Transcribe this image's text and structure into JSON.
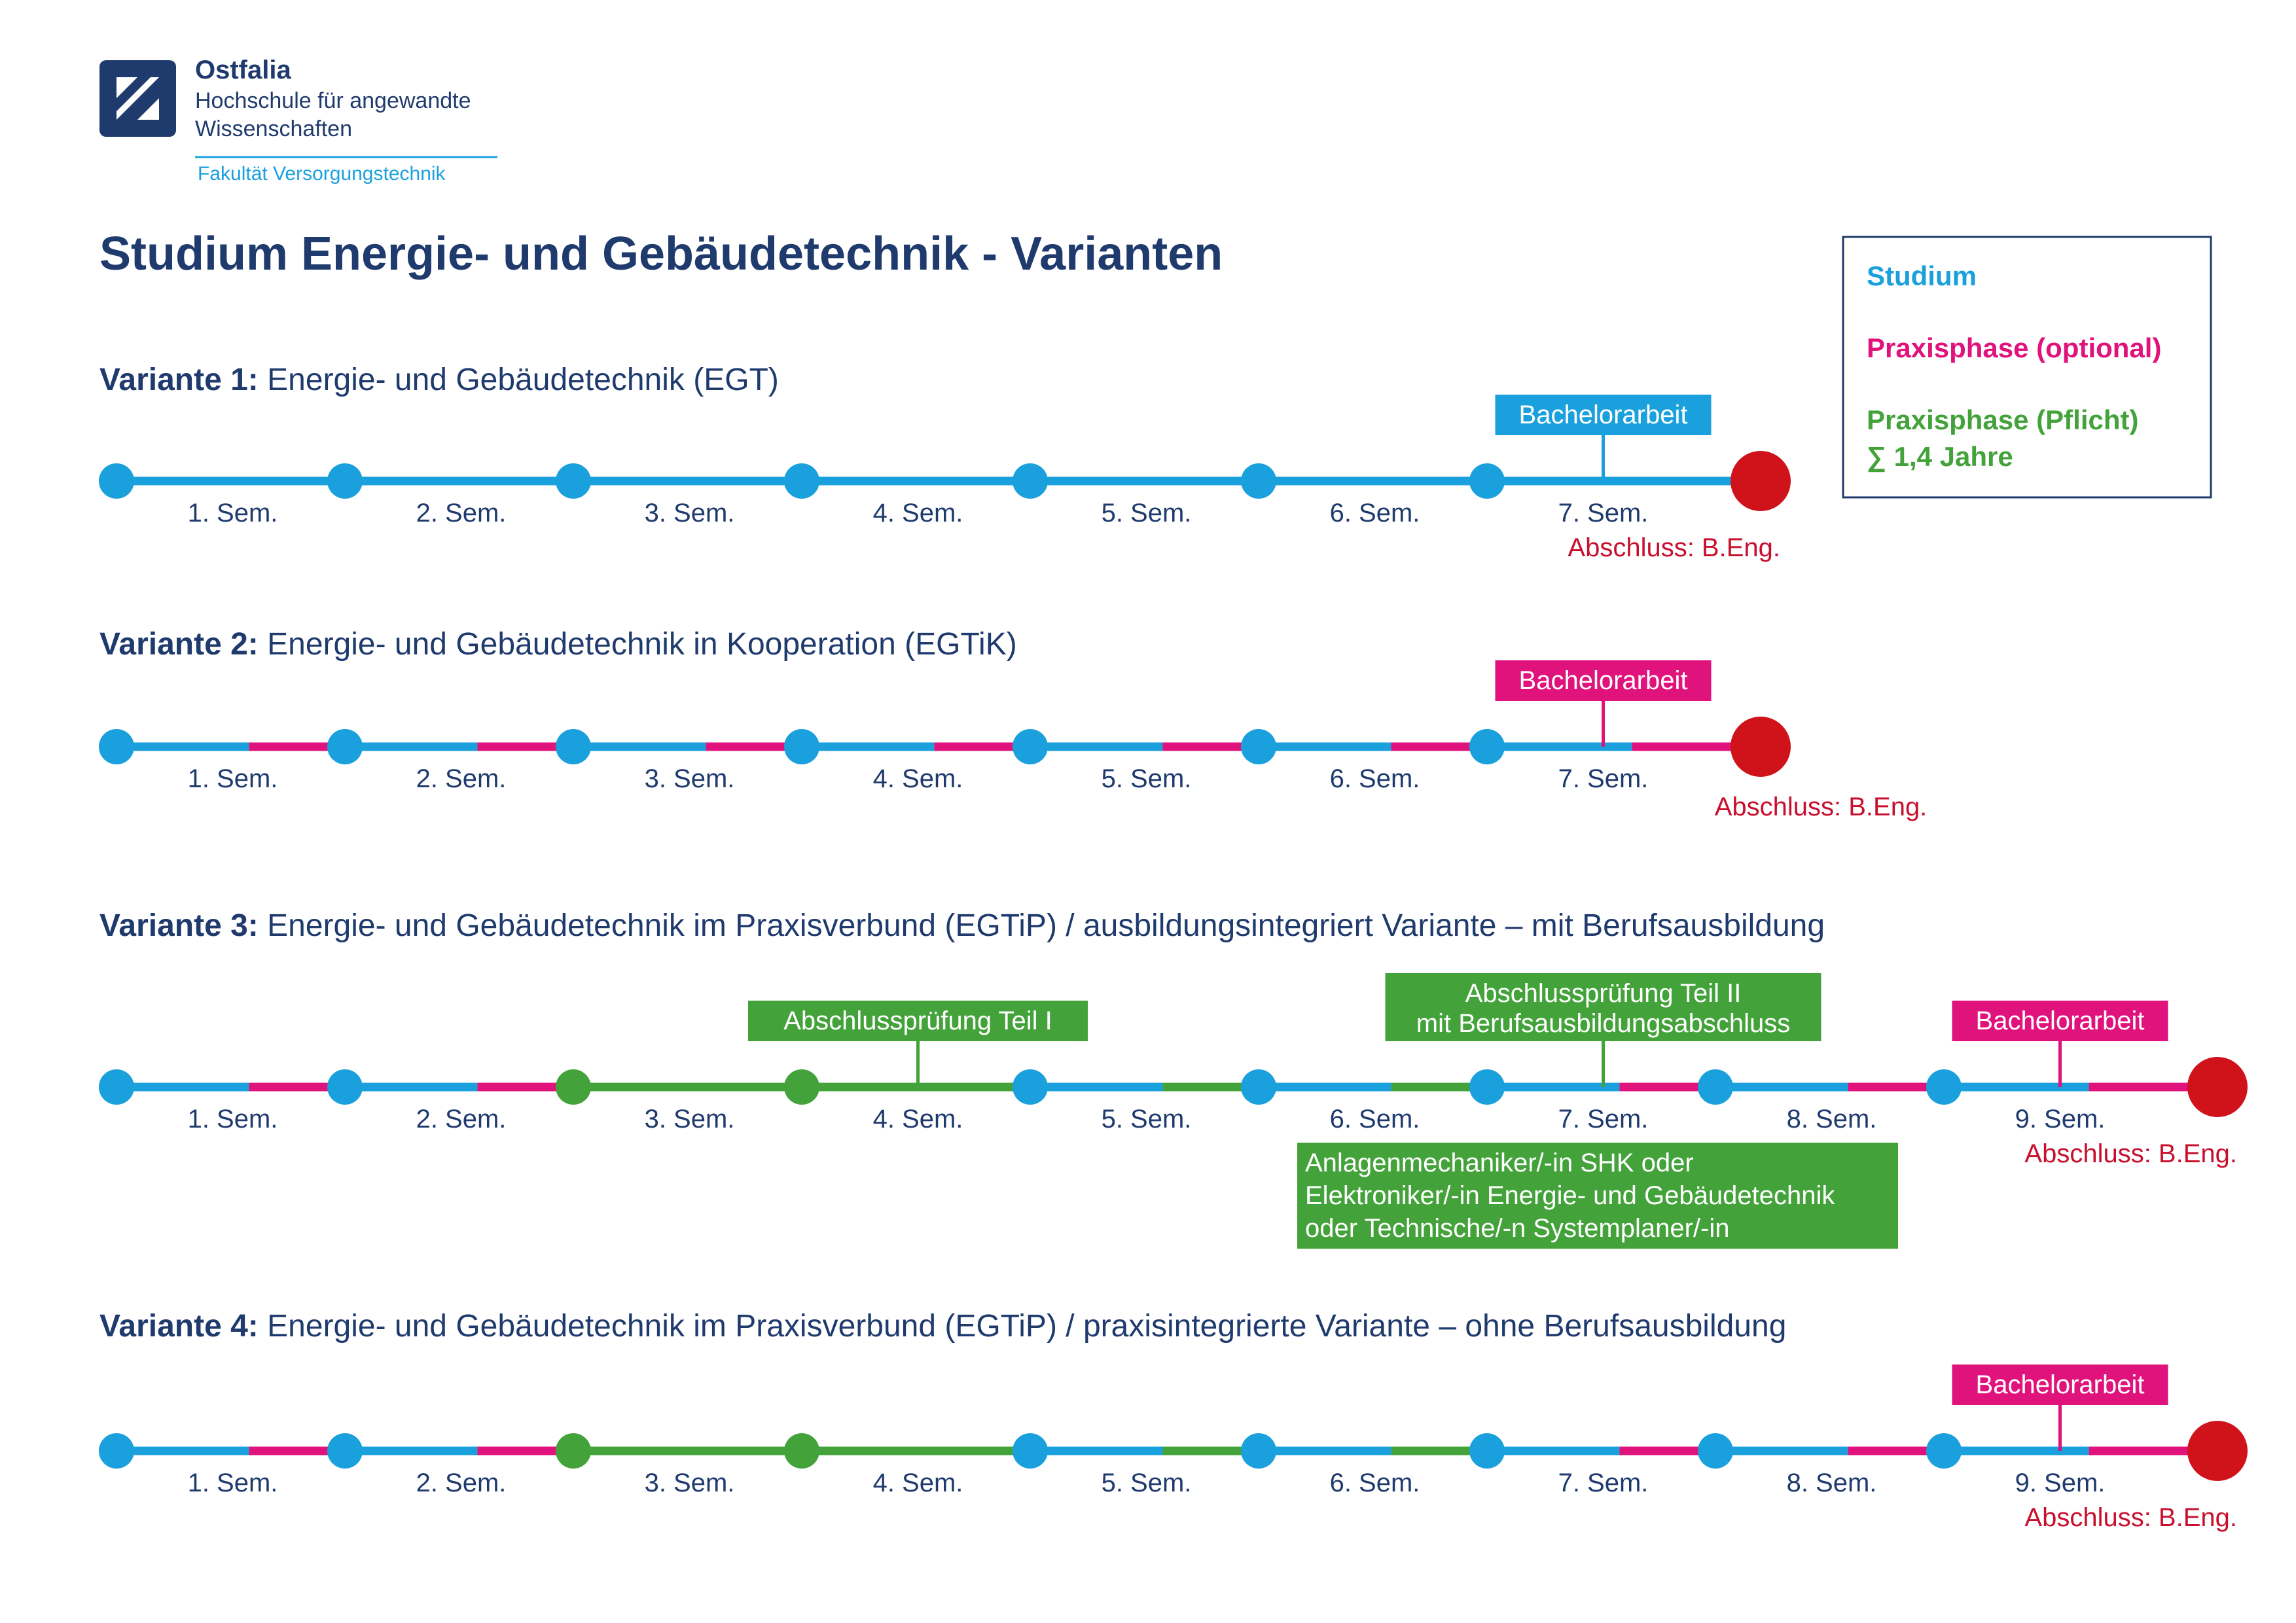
{
  "header": {
    "org_name": "Ostfalia",
    "org_line2": "Hochschule für angewandte",
    "org_line3": "Wissenschaften",
    "faculty": "Fakultät Versorgungstechnik"
  },
  "title": "Studium Energie- und Gebäudetechnik - Varianten",
  "legend": {
    "items": [
      {
        "label": "Studium",
        "color_key": "blue"
      },
      {
        "label": "Praxisphase (optional)",
        "color_key": "pink"
      },
      {
        "label": "Praxisphase (Pflicht)",
        "color_key": "green"
      }
    ],
    "sum_label": "∑ 1,4 Jahre"
  },
  "colors": {
    "blue": "#1aa0dc",
    "pink": "#e0127c",
    "green": "#43a33a",
    "red": "#d0131b",
    "navy": "#1f3a6d",
    "darkred": "#c8102e"
  },
  "variants": [
    {
      "label_bold": "Variante 1:",
      "label_text": " Energie- und Gebäudetechnik (EGT)",
      "nodes": [
        "blue",
        "blue",
        "blue",
        "blue",
        "blue",
        "blue",
        "blue"
      ],
      "segments": [
        [
          "blue"
        ],
        [
          "blue"
        ],
        [
          "blue"
        ],
        [
          "blue"
        ],
        [
          "blue"
        ],
        [
          "blue"
        ],
        [
          "blue"
        ]
      ],
      "semesters": [
        "1. Sem.",
        "2. Sem.",
        "3. Sem.",
        "4. Sem.",
        "5. Sem.",
        "6. Sem.",
        "7. Sem."
      ],
      "callouts": [
        {
          "lines": [
            "Bachelorarbeit"
          ],
          "color_key": "blue",
          "semester_index": 6
        }
      ],
      "below_boxes": [],
      "abschluss": "Abschluss: B.Eng.",
      "abschluss_align": "under-end"
    },
    {
      "label_bold": "Variante 2:",
      "label_text": " Energie- und Gebäudetechnik in Kooperation (EGTiK)",
      "nodes": [
        "blue",
        "blue",
        "blue",
        "blue",
        "blue",
        "blue",
        "blue"
      ],
      "segments": [
        [
          "blue",
          "pink"
        ],
        [
          "blue",
          "pink"
        ],
        [
          "blue",
          "pink"
        ],
        [
          "blue",
          "pink"
        ],
        [
          "blue",
          "pink"
        ],
        [
          "blue",
          "pink"
        ],
        [
          "blue",
          "pink"
        ]
      ],
      "semesters": [
        "1. Sem.",
        "2. Sem.",
        "3. Sem.",
        "4. Sem.",
        "5. Sem.",
        "6. Sem.",
        "7. Sem."
      ],
      "callouts": [
        {
          "lines": [
            "Bachelorarbeit"
          ],
          "color_key": "pink",
          "semester_index": 6
        }
      ],
      "below_boxes": [],
      "abschluss": "Abschluss: B.Eng.",
      "abschluss_align": "right-of-end"
    },
    {
      "label_bold": "Variante 3:",
      "label_text": " Energie- und Gebäudetechnik im Praxisverbund (EGTiP) / ausbildungsintegriert Variante – mit Berufsausbildung",
      "nodes": [
        "blue",
        "blue",
        "green",
        "green",
        "blue",
        "blue",
        "blue",
        "blue",
        "blue"
      ],
      "segments": [
        [
          "blue",
          "pink"
        ],
        [
          "blue",
          "pink"
        ],
        [
          "green"
        ],
        [
          "green"
        ],
        [
          "blue",
          "green"
        ],
        [
          "blue",
          "green"
        ],
        [
          "blue",
          "pink"
        ],
        [
          "blue",
          "pink"
        ],
        [
          "blue",
          "pink"
        ]
      ],
      "semesters": [
        "1. Sem.",
        "2. Sem.",
        "3. Sem.",
        "4. Sem.",
        "5. Sem.",
        "6. Sem.",
        "7. Sem.",
        "8. Sem.",
        "9. Sem."
      ],
      "callouts": [
        {
          "lines": [
            "Abschlussprüfung Teil I"
          ],
          "color_key": "green",
          "semester_index": 3
        },
        {
          "lines": [
            "Abschlussprüfung Teil II",
            "mit Berufsausbildungsabschluss"
          ],
          "color_key": "green",
          "semester_index": 6
        },
        {
          "lines": [
            "Bachelorarbeit"
          ],
          "color_key": "pink",
          "semester_index": 8
        }
      ],
      "below_boxes": [
        {
          "lines": [
            "Anlagenmechaniker/-in SHK oder",
            "Elektroniker/-in Energie- und Gebäudetechnik",
            "oder Technische/-n Systemplaner/-in"
          ],
          "color_key": "green"
        }
      ],
      "abschluss": "Abschluss: B.Eng.",
      "abschluss_align": "under-end"
    },
    {
      "label_bold": "Variante 4:",
      "label_text": " Energie- und Gebäudetechnik im Praxisverbund (EGTiP) / praxisintegrierte Variante – ohne Berufsausbildung",
      "nodes": [
        "blue",
        "blue",
        "green",
        "green",
        "blue",
        "blue",
        "blue",
        "blue",
        "blue"
      ],
      "segments": [
        [
          "blue",
          "pink"
        ],
        [
          "blue",
          "pink"
        ],
        [
          "green"
        ],
        [
          "green"
        ],
        [
          "blue",
          "green"
        ],
        [
          "blue",
          "green"
        ],
        [
          "blue",
          "pink"
        ],
        [
          "blue",
          "pink"
        ],
        [
          "blue",
          "pink"
        ]
      ],
      "semesters": [
        "1. Sem.",
        "2. Sem.",
        "3. Sem.",
        "4. Sem.",
        "5. Sem.",
        "6. Sem.",
        "7. Sem.",
        "8. Sem.",
        "9. Sem."
      ],
      "callouts": [
        {
          "lines": [
            "Bachelorarbeit"
          ],
          "color_key": "pink",
          "semester_index": 8
        }
      ],
      "below_boxes": [],
      "abschluss": "Abschluss: B.Eng.",
      "abschluss_align": "under-end"
    }
  ]
}
